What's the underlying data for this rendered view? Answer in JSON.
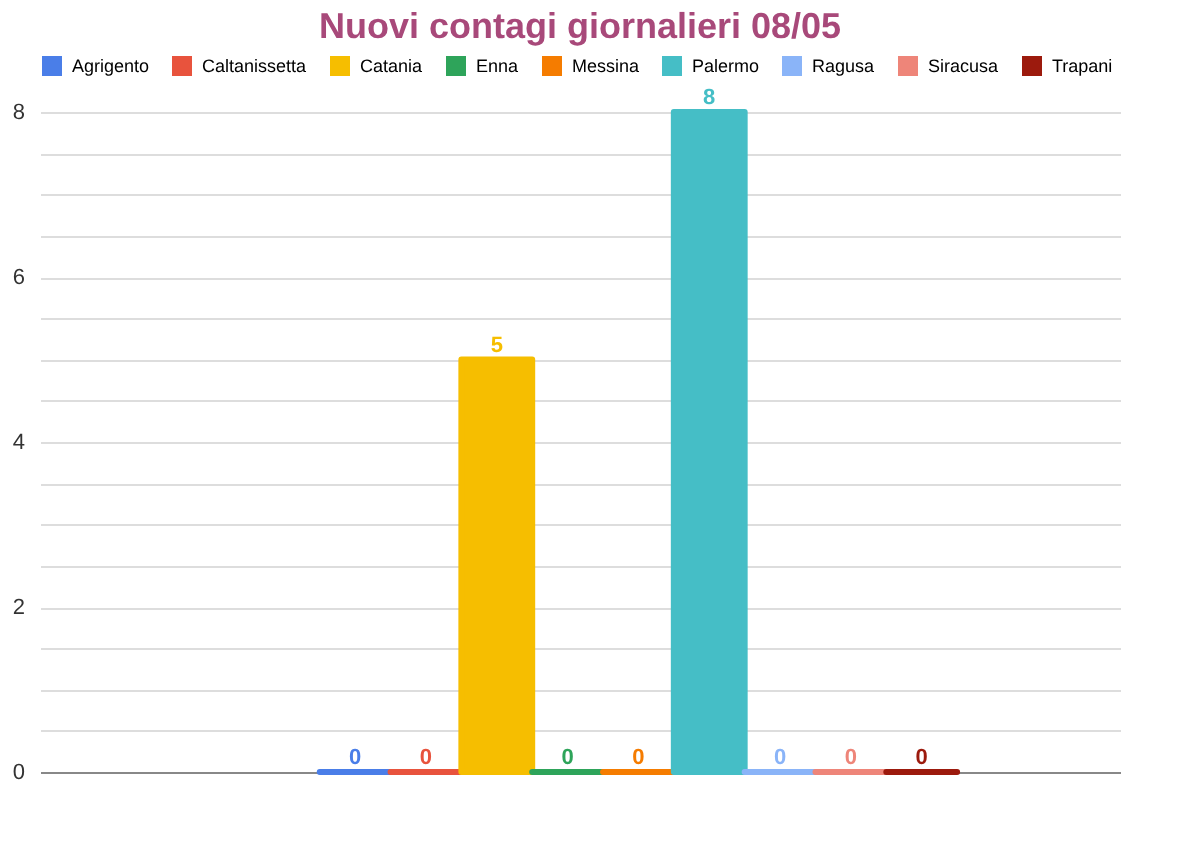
{
  "chart_data": {
    "type": "bar",
    "title": "Nuovi contagi giornalieri 08/05",
    "categories": [
      null
    ],
    "series": [
      {
        "name": "Agrigento",
        "color": "#4a7ee8",
        "values": [
          0
        ]
      },
      {
        "name": "Caltanissetta",
        "color": "#e8533d",
        "values": [
          0
        ]
      },
      {
        "name": "Catania",
        "color": "#f6be00",
        "values": [
          5
        ]
      },
      {
        "name": "Enna",
        "color": "#2ea45a",
        "values": [
          0
        ]
      },
      {
        "name": "Messina",
        "color": "#f57c00",
        "values": [
          0
        ]
      },
      {
        "name": "Palermo",
        "color": "#45bec6",
        "values": [
          8
        ]
      },
      {
        "name": "Ragusa",
        "color": "#8ab4f8",
        "values": [
          0
        ]
      },
      {
        "name": "Siracusa",
        "color": "#ee8579",
        "values": [
          0
        ]
      },
      {
        "name": "Trapani",
        "color": "#9c1a0d",
        "values": [
          0
        ]
      }
    ],
    "ylim": [
      0,
      8
    ],
    "yticks": [
      0,
      {
        "value": 0.5,
        "label": null
      },
      {
        "value": 1,
        "label": null
      },
      {
        "value": 1.5,
        "label": null
      },
      2,
      {
        "value": 2.5,
        "label": null
      },
      {
        "value": 3,
        "label": null
      },
      {
        "value": 3.5,
        "label": null
      },
      4,
      {
        "value": 4.5,
        "label": null
      },
      {
        "value": 5,
        "label": null
      },
      {
        "value": 5.5,
        "label": null
      },
      6,
      {
        "value": 6.5,
        "label": null
      },
      {
        "value": 7,
        "label": null
      },
      {
        "value": 7.5,
        "label": null
      },
      8
    ],
    "grid": "y",
    "legend": "top",
    "data_labels": true
  }
}
